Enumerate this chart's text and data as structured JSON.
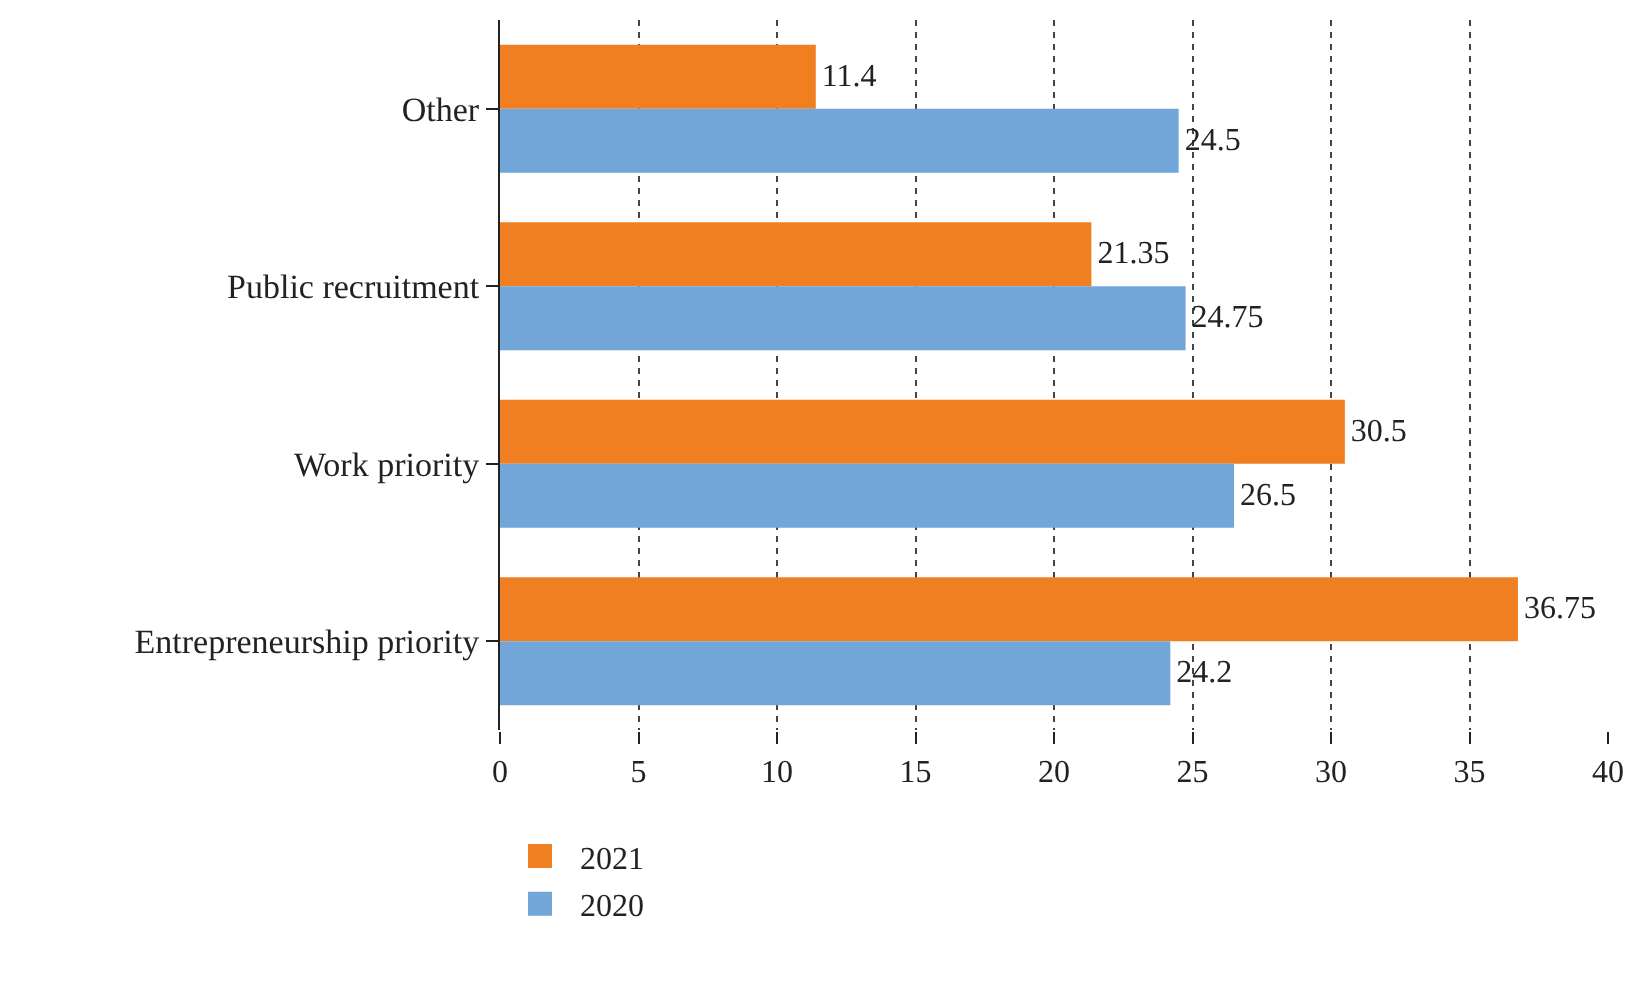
{
  "chart_data": {
    "type": "bar",
    "orientation": "horizontal",
    "categories": [
      "Other",
      "Public recruitment",
      "Work priority",
      "Entrepreneurship priority"
    ],
    "series": [
      {
        "name": "2021",
        "color": "#f07f22",
        "values": [
          11.4,
          21.35,
          30.5,
          36.75
        ]
      },
      {
        "name": "2020",
        "color": "#72a6d9",
        "values": [
          24.5,
          24.75,
          26.5,
          24.2
        ]
      }
    ],
    "xlim": [
      0,
      40
    ],
    "xticks": [
      0,
      5,
      10,
      15,
      20,
      25,
      30,
      35,
      40
    ],
    "grid": "x",
    "legend": "bottom left",
    "data_labels": true
  }
}
